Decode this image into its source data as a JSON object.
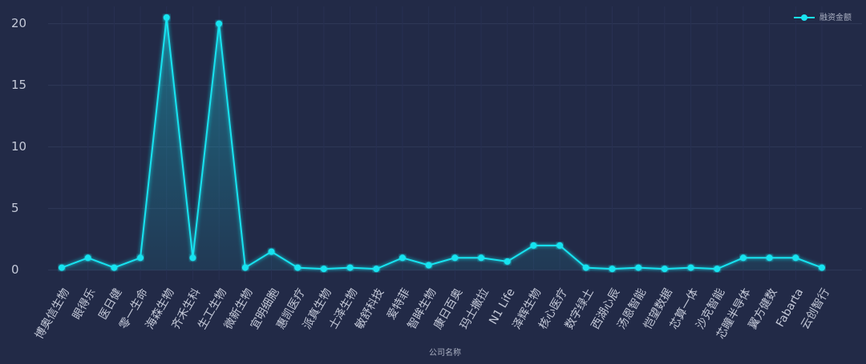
{
  "chart_data": {
    "type": "line",
    "x_label": "公司名称",
    "categories": [
      "博奥信生物",
      "眼得乐",
      "医日健",
      "零一生命",
      "海森生物",
      "齐禾生科",
      "生工生物",
      "微新生物",
      "宜明细胞",
      "惠凯医疗",
      "派真生物",
      "士泽生物",
      "敏舒科技",
      "爱特菲",
      "智眸生物",
      "康日百奥",
      "玛士撒拉",
      "N1 Life",
      "泽辉生物",
      "核心医疗",
      "数字绿土",
      "西湖心辰",
      "汤恩智能",
      "恺望数据",
      "芯算一体",
      "沙克智能",
      "芯瞳半导体",
      "翼方健数",
      "Fabarta",
      "云创智行"
    ],
    "series": [
      {
        "name": "融资金额",
        "color": "#19e3f0",
        "values": [
          0.2,
          1,
          0.2,
          1,
          20.5,
          1,
          20,
          0.2,
          1.5,
          0.2,
          0.1,
          0.2,
          0.1,
          1,
          0.4,
          1,
          1,
          0.7,
          2,
          2,
          0.2,
          0.1,
          0.2,
          0.1,
          0.2,
          0.1,
          1,
          1,
          1,
          0.2
        ]
      }
    ],
    "ylim": [
      -0.8,
      21.4
    ],
    "yticks": [
      0,
      5,
      10,
      15,
      20
    ],
    "grid": true,
    "legend": "top-right"
  }
}
